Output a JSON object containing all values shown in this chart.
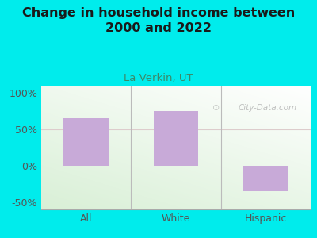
{
  "title": "Change in household income between\n2000 and 2022",
  "subtitle": "La Verkin, UT",
  "categories": [
    "All",
    "White",
    "Hispanic"
  ],
  "values": [
    65,
    75,
    -35
  ],
  "bar_color": "#c8aad8",
  "background_outer": "#00ecec",
  "title_color": "#1a1a1a",
  "subtitle_color": "#3a8a6a",
  "tick_label_color": "#555555",
  "ylim": [
    -60,
    110
  ],
  "yticks": [
    -50,
    0,
    50,
    100
  ],
  "ytick_labels": [
    "-50%",
    "0%",
    "50%",
    "100%"
  ],
  "watermark": "City-Data.com",
  "title_fontsize": 11.5,
  "subtitle_fontsize": 9.5,
  "tick_fontsize": 9,
  "divider_color": "#bbbbbb",
  "grid_line_color": "#ddcccc"
}
